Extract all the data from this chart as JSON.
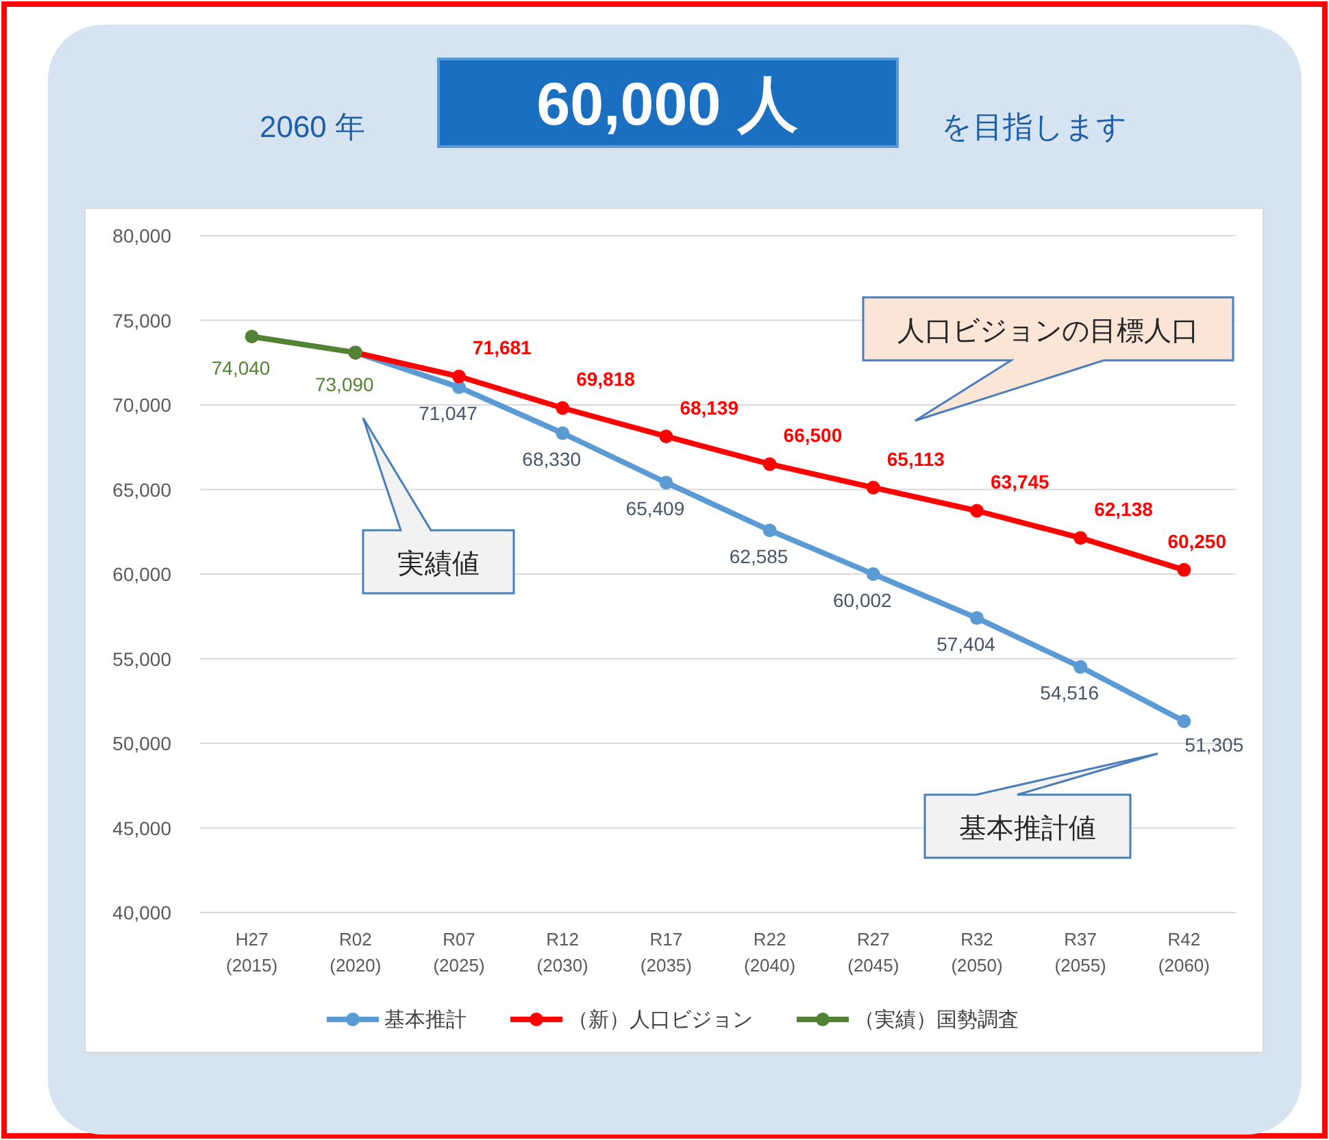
{
  "chart_data": {
    "type": "line",
    "title": "60,000 人",
    "categories": [
      "H27\n(2015)",
      "R02\n(2020)",
      "R07\n(2025)",
      "R12\n(2030)",
      "R17\n(2035)",
      "R22\n(2040)",
      "R27\n(2045)",
      "R32\n(2050)",
      "R37\n(2055)",
      "R42\n(2060)"
    ],
    "series": [
      {
        "name": "基本推計",
        "color": "#5b9bd5",
        "values": [
          null,
          73090,
          71047,
          68330,
          65409,
          62585,
          60002,
          57404,
          54516,
          51305
        ],
        "value_labels": [
          null,
          null,
          "71,047",
          "68,330",
          "65,409",
          "62,585",
          "60,002",
          "57,404",
          "54,516",
          "51,305"
        ]
      },
      {
        "name": "（新）人口ビジョン",
        "color": "#ff0000",
        "values": [
          null,
          73090,
          71681,
          69818,
          68139,
          66500,
          65113,
          63745,
          62138,
          60250
        ],
        "value_labels": [
          null,
          null,
          "71,681",
          "69,818",
          "68,139",
          "66,500",
          "65,113",
          "63,745",
          "62,138",
          "60,250"
        ]
      },
      {
        "name": "（実績）国勢調査",
        "color": "#548235",
        "values": [
          74040,
          73090,
          null,
          null,
          null,
          null,
          null,
          null,
          null,
          null
        ],
        "value_labels": [
          "74,040",
          "73,090",
          null,
          null,
          null,
          null,
          null,
          null,
          null,
          null
        ]
      }
    ],
    "ylim": [
      40000,
      80000
    ],
    "yticks": [
      {
        "value": 40000,
        "label": "40,000"
      },
      {
        "value": 45000,
        "label": "45,000"
      },
      {
        "value": 50000,
        "label": "50,000"
      },
      {
        "value": 55000,
        "label": "55,000"
      },
      {
        "value": 60000,
        "label": "60,000"
      },
      {
        "value": 65000,
        "label": "65,000"
      },
      {
        "value": 70000,
        "label": "70,000"
      },
      {
        "value": 75000,
        "label": "75,000"
      },
      {
        "value": 80000,
        "label": "80,000"
      }
    ],
    "grid": "y",
    "legend": "bottom",
    "marker": "circle",
    "line_style": "solid",
    "annotations": [
      "2060 年",
      "を目指します",
      "実績値",
      "人口ビジョンの目標人口",
      "基本推計値"
    ]
  }
}
